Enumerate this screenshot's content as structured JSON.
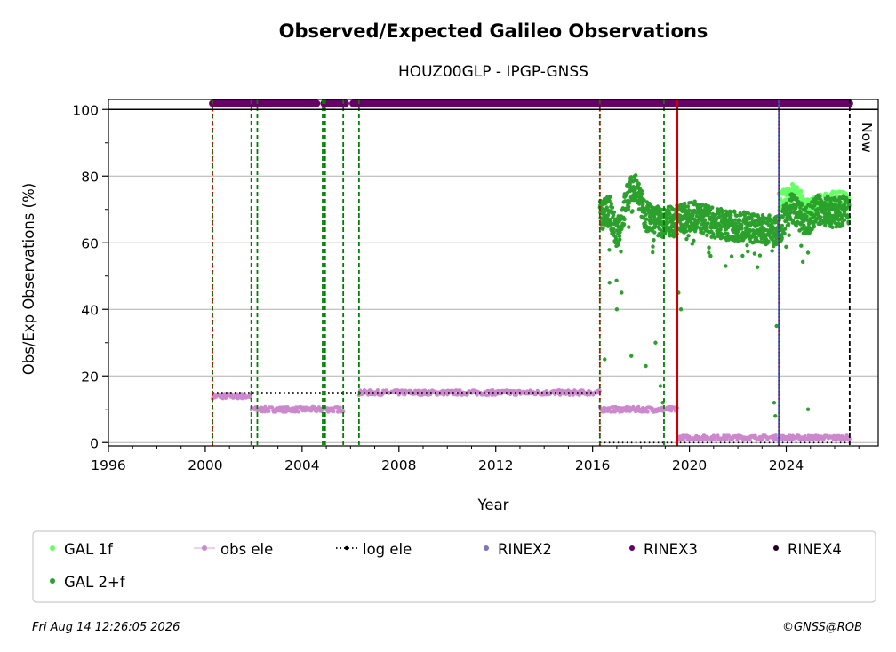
{
  "chart_data": {
    "type": "scatter",
    "title": "Observed/Expected Galileo Observations",
    "subtitle": "HOUZ00GLP - IPGP-GNSS",
    "xlabel": "Year",
    "ylabel": "Obs/Exp Observations (%)",
    "xlim": [
      1996,
      2027.8
    ],
    "ylim": [
      -1,
      103
    ],
    "x_ticks": [
      {
        "value": 1996,
        "label": "1996"
      },
      {
        "value": 2000,
        "label": "2000"
      },
      {
        "value": 2004,
        "label": "2004"
      },
      {
        "value": 2008,
        "label": "2008"
      },
      {
        "value": 2012,
        "label": "2012"
      },
      {
        "value": 2016,
        "label": "2016"
      },
      {
        "value": 2020,
        "label": "2020"
      },
      {
        "value": 2024,
        "label": "2024"
      }
    ],
    "y_ticks": [
      {
        "value": 0,
        "label": "0"
      },
      {
        "value": 20,
        "label": "20"
      },
      {
        "value": 40,
        "label": "40"
      },
      {
        "value": 60,
        "label": "60"
      },
      {
        "value": 80,
        "label": "80"
      },
      {
        "value": 100,
        "label": "100"
      }
    ],
    "grid": "horizontal",
    "now_label": "Now",
    "now_year": 2026.62,
    "legend_position": "below",
    "legend": [
      {
        "key": "gal1f",
        "label": "GAL 1f",
        "color": "#66ff66",
        "marker": "dot"
      },
      {
        "key": "obsele",
        "label": "obs ele",
        "color": "#cc88cc",
        "marker": "line-dot"
      },
      {
        "key": "logele",
        "label": "log ele",
        "color": "#000000",
        "marker": "dotted-line"
      },
      {
        "key": "rinex2",
        "label": "RINEX2",
        "color": "#7f77bb",
        "marker": "dot"
      },
      {
        "key": "rinex3",
        "label": "RINEX3",
        "color": "#660066",
        "marker": "dot"
      },
      {
        "key": "rinex4",
        "label": "RINEX4",
        "color": "#220022",
        "marker": "dot"
      },
      {
        "key": "gal2f",
        "label": "GAL 2+f",
        "color": "#2ca02c",
        "marker": "dot"
      }
    ],
    "colors": {
      "gal1f": "#66ff66",
      "gal2f": "#2ca02c",
      "obs_ele": "#cc88cc",
      "log_ele": "#000000",
      "rinex3": "#660066",
      "receiver_change": "#008000",
      "antenna_change": "#cc0000",
      "firmware_change": "#1f5fd0",
      "grid": "#b0b0b0"
    },
    "event_lines": [
      {
        "x": 2000.3,
        "kind": "receiver",
        "style": "dashed"
      },
      {
        "x": 2000.3,
        "kind": "antenna",
        "style": "dotted"
      },
      {
        "x": 2001.9,
        "kind": "receiver",
        "style": "dashed"
      },
      {
        "x": 2002.15,
        "kind": "receiver",
        "style": "dashed"
      },
      {
        "x": 2004.85,
        "kind": "receiver",
        "style": "dashed"
      },
      {
        "x": 2004.95,
        "kind": "receiver",
        "style": "dashed"
      },
      {
        "x": 2005.7,
        "kind": "receiver",
        "style": "dashed"
      },
      {
        "x": 2006.35,
        "kind": "receiver",
        "style": "dashed"
      },
      {
        "x": 2016.3,
        "kind": "receiver",
        "style": "dashed"
      },
      {
        "x": 2016.3,
        "kind": "antenna",
        "style": "dotted"
      },
      {
        "x": 2018.95,
        "kind": "receiver",
        "style": "dashed"
      },
      {
        "x": 2019.5,
        "kind": "antenna",
        "style": "solid"
      },
      {
        "x": 2023.7,
        "kind": "firmware",
        "style": "solid"
      },
      {
        "x": 2023.7,
        "kind": "antenna",
        "style": "dotted"
      }
    ],
    "rinex3_segments": [
      {
        "x_start": 2000.3,
        "x_end": 2001.9,
        "y": 101.8
      },
      {
        "x_start": 2001.95,
        "x_end": 2004.6,
        "y": 101.8
      },
      {
        "x_start": 2004.9,
        "x_end": 2005.8,
        "y": 101.8
      },
      {
        "x_start": 2006.1,
        "x_end": 2026.62,
        "y": 101.8
      }
    ],
    "log_ele_segments": [
      {
        "x_start": 2000.3,
        "x_end": 2016.3,
        "y": 15
      },
      {
        "x_start": 2016.3,
        "x_end": 2026.62,
        "y": 0
      }
    ],
    "obs_ele_segments": [
      {
        "x_start": 2000.3,
        "x_end": 2001.9,
        "y": 14
      },
      {
        "x_start": 2001.9,
        "x_end": 2004.85,
        "y": 10
      },
      {
        "x_start": 2004.95,
        "x_end": 2005.7,
        "y": 10
      },
      {
        "x_start": 2006.35,
        "x_end": 2016.3,
        "y": 15
      },
      {
        "x_start": 2016.3,
        "x_end": 2019.5,
        "y": 10
      },
      {
        "x_start": 2019.5,
        "x_end": 2026.62,
        "y": 1.5
      }
    ],
    "gal2f_trend": [
      {
        "x": 2016.3,
        "y": 68
      },
      {
        "x": 2016.7,
        "y": 70
      },
      {
        "x": 2017.0,
        "y": 62
      },
      {
        "x": 2017.5,
        "y": 75
      },
      {
        "x": 2017.8,
        "y": 76
      },
      {
        "x": 2018.2,
        "y": 68
      },
      {
        "x": 2018.9,
        "y": 66
      },
      {
        "x": 2019.5,
        "y": 67
      },
      {
        "x": 2020.2,
        "y": 68
      },
      {
        "x": 2021.0,
        "y": 66
      },
      {
        "x": 2022.0,
        "y": 65
      },
      {
        "x": 2023.0,
        "y": 64
      },
      {
        "x": 2023.7,
        "y": 64
      },
      {
        "x": 2024.2,
        "y": 71
      },
      {
        "x": 2024.8,
        "y": 66
      },
      {
        "x": 2025.3,
        "y": 70
      },
      {
        "x": 2026.0,
        "y": 69
      },
      {
        "x": 2026.6,
        "y": 70
      }
    ],
    "gal2f_outliers": [
      {
        "x": 2016.5,
        "y": 25
      },
      {
        "x": 2016.7,
        "y": 48
      },
      {
        "x": 2017.0,
        "y": 40
      },
      {
        "x": 2017.2,
        "y": 45
      },
      {
        "x": 2017.6,
        "y": 26
      },
      {
        "x": 2018.2,
        "y": 23
      },
      {
        "x": 2018.6,
        "y": 30
      },
      {
        "x": 2018.9,
        "y": 12
      },
      {
        "x": 2018.8,
        "y": 17
      },
      {
        "x": 2019.55,
        "y": 45
      },
      {
        "x": 2019.65,
        "y": 40
      },
      {
        "x": 2020.8,
        "y": 57
      },
      {
        "x": 2021.5,
        "y": 53
      },
      {
        "x": 2023.5,
        "y": 12
      },
      {
        "x": 2023.6,
        "y": 35
      },
      {
        "x": 2023.55,
        "y": 8
      },
      {
        "x": 2024.9,
        "y": 10
      },
      {
        "x": 2024.9,
        "y": 57
      }
    ],
    "gal1f_trend": [
      {
        "x": 2023.7,
        "y": 72
      },
      {
        "x": 2024.3,
        "y": 75
      },
      {
        "x": 2025.0,
        "y": 70
      },
      {
        "x": 2025.8,
        "y": 73
      },
      {
        "x": 2026.6,
        "y": 72
      }
    ],
    "footer_left": "Fri Aug 14 12:26:05 2026",
    "footer_right": "©GNSS@ROB"
  }
}
